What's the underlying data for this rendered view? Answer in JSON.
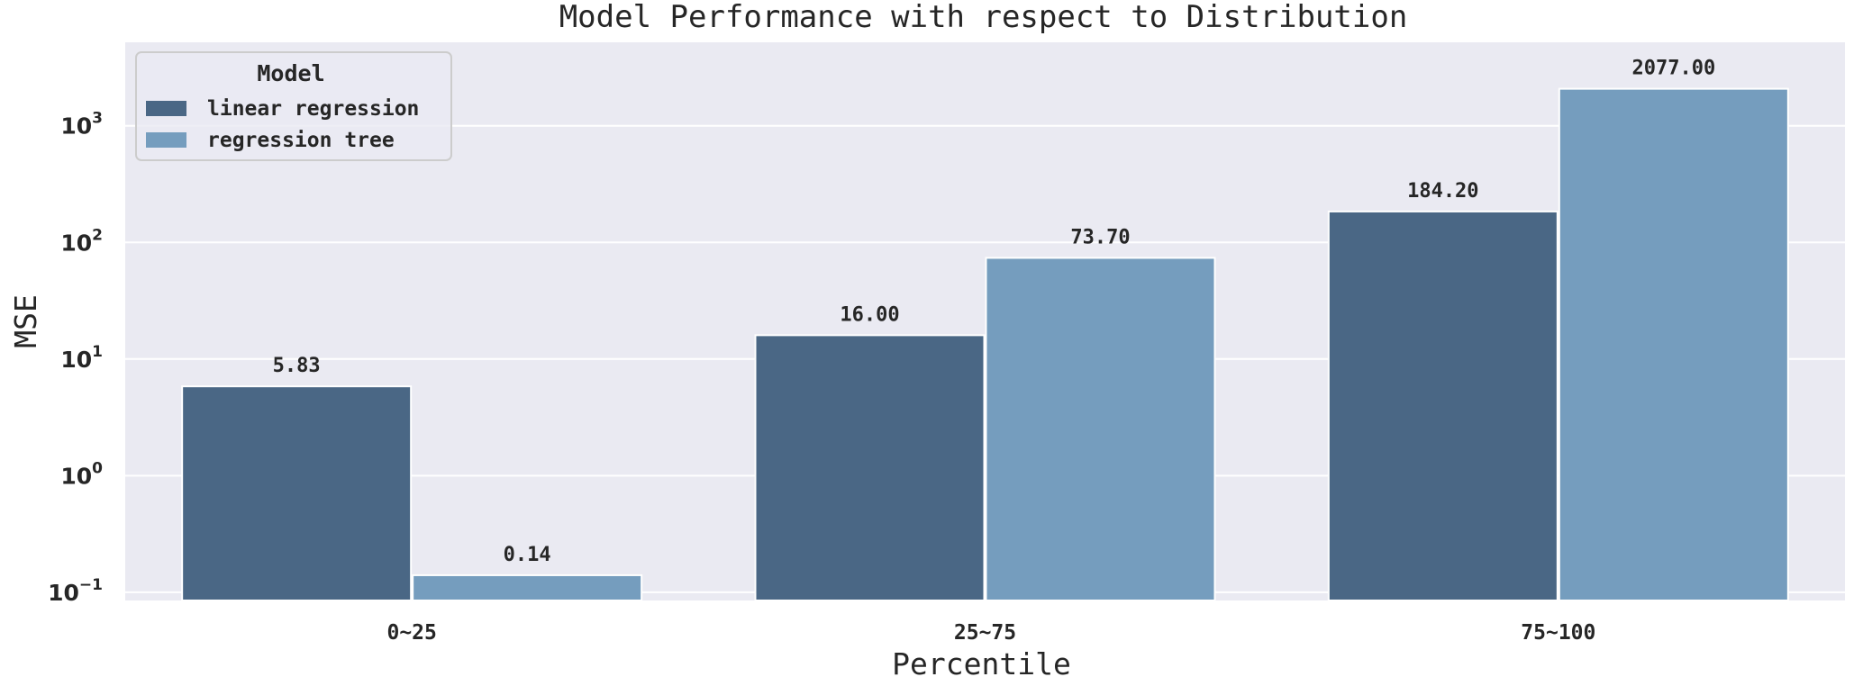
{
  "chart_data": {
    "type": "bar",
    "title": "Model Performance with respect to Distribution",
    "xlabel": "Percentile",
    "ylabel": "MSE",
    "yscale": "log",
    "ylim": [
      0.085,
      5200
    ],
    "yticks": [
      {
        "value": 0.1,
        "base": "10",
        "exp": "−1"
      },
      {
        "value": 1,
        "base": "10",
        "exp": "0"
      },
      {
        "value": 10,
        "base": "10",
        "exp": "1"
      },
      {
        "value": 100,
        "base": "10",
        "exp": "2"
      },
      {
        "value": 1000,
        "base": "10",
        "exp": "3"
      }
    ],
    "categories": [
      "0~25",
      "25~75",
      "75~100"
    ],
    "series": [
      {
        "name": "linear regression",
        "color": "#4a6785",
        "values": [
          5.83,
          16.0,
          184.2
        ],
        "labels": [
          "5.83",
          "16.00",
          "184.20"
        ]
      },
      {
        "name": "regression tree",
        "color": "#759dbe",
        "values": [
          0.14,
          73.7,
          2077.0
        ],
        "labels": [
          "0.14",
          "73.70",
          "2077.00"
        ]
      }
    ],
    "legend": {
      "title": "Model",
      "placement": "top-left"
    },
    "grid": true,
    "background": "#eaeaf2"
  }
}
